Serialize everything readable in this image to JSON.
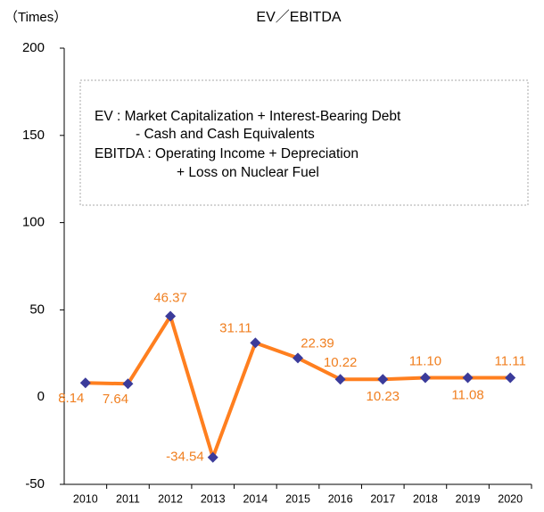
{
  "chart_data": {
    "type": "line",
    "title": "EV／EBITDA",
    "y_axis_label": "（Times）",
    "annotation": [
      "EV : Market Capitalization + Interest-Bearing Debt",
      "- Cash and Cash Equivalents",
      "EBITDA : Operating Income + Depreciation",
      "+ Loss on Nuclear  Fuel"
    ],
    "categories": [
      "2010",
      "2011",
      "2012",
      "2013",
      "2014",
      "2015",
      "2016",
      "2017",
      "2018",
      "2019",
      "2020"
    ],
    "series": [
      {
        "name": "EV／EBITDA",
        "color": "#ff7f1f",
        "marker_color": "#3b3b9a",
        "values": [
          8.14,
          7.64,
          46.37,
          -34.54,
          31.11,
          22.39,
          10.22,
          10.23,
          11.1,
          11.08,
          11.11
        ],
        "value_labels": [
          "8.14",
          "7.64",
          "46.37",
          "-34.54",
          "31.11",
          "22.39",
          "10.22",
          "10.23",
          "11.10",
          "11.08",
          "11.11"
        ]
      }
    ],
    "ylim": [
      -50,
      200
    ],
    "yticks": [
      -50,
      0,
      50,
      100,
      150,
      200
    ],
    "grid": false
  }
}
